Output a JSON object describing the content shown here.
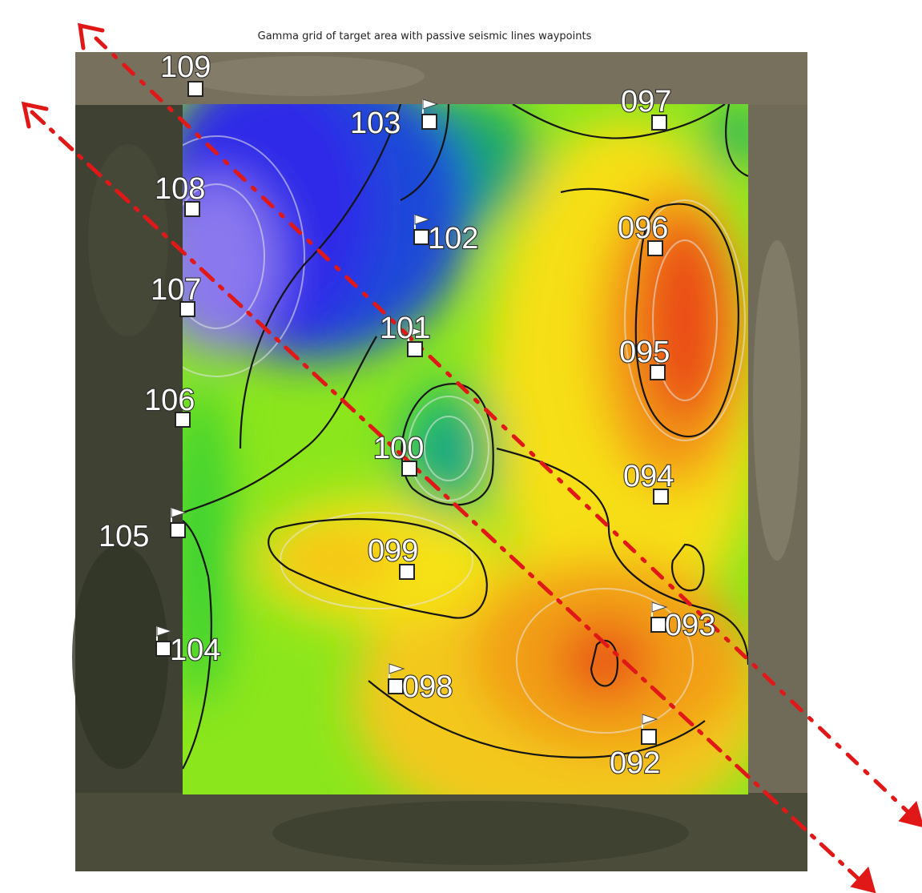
{
  "title": "Gamma grid of target area with passive seismic lines waypoints",
  "colors": {
    "high": "#e83a10",
    "mid": "#f6f20a",
    "low": "#2b20e8",
    "seismic_line": "#e01818"
  },
  "waypoints": [
    {
      "label": "109",
      "flag": false
    },
    {
      "label": "108",
      "flag": false
    },
    {
      "label": "107",
      "flag": false
    },
    {
      "label": "106",
      "flag": false
    },
    {
      "label": "105",
      "flag": true
    },
    {
      "label": "104",
      "flag": true
    },
    {
      "label": "103",
      "flag": true
    },
    {
      "label": "102",
      "flag": true
    },
    {
      "label": "101",
      "flag": true
    },
    {
      "label": "100",
      "flag": false
    },
    {
      "label": "099",
      "flag": false
    },
    {
      "label": "098",
      "flag": true
    },
    {
      "label": "097",
      "flag": false
    },
    {
      "label": "096",
      "flag": false
    },
    {
      "label": "095",
      "flag": false
    },
    {
      "label": "094",
      "flag": false
    },
    {
      "label": "093",
      "flag": true
    },
    {
      "label": "092",
      "flag": true
    }
  ]
}
